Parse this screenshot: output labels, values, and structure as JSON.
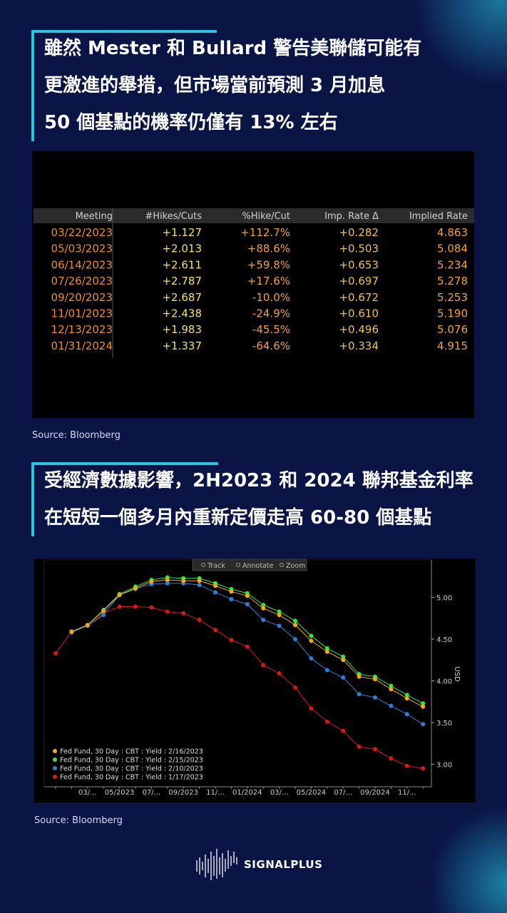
{
  "heading1": {
    "lines": [
      "雖然 Mester 和 Bullard 警告美聯儲可能有",
      "更激進的舉措，但市場當前預測 3 月加息",
      "50 個基點的機率仍僅有 13% 左右"
    ]
  },
  "table": {
    "columns": [
      "Meeting",
      "#Hikes/Cuts",
      "%Hike/Cut",
      "Imp. Rate Δ",
      "Implied Rate"
    ],
    "rows": [
      [
        "03/22/2023",
        "+1.127",
        "+112.7%",
        "+0.282",
        "4.863"
      ],
      [
        "05/03/2023",
        "+2.013",
        "+88.6%",
        "+0.503",
        "5.084"
      ],
      [
        "06/14/2023",
        "+2.611",
        "+59.8%",
        "+0.653",
        "5.234"
      ],
      [
        "07/26/2023",
        "+2.787",
        "+17.6%",
        "+0.697",
        "5.278"
      ],
      [
        "09/20/2023",
        "+2.687",
        "-10.0%",
        "+0.672",
        "5.253"
      ],
      [
        "11/01/2023",
        "+2.438",
        "-24.9%",
        "+0.610",
        "5.190"
      ],
      [
        "12/13/2023",
        "+1.983",
        "-45.5%",
        "+0.496",
        "5.076"
      ],
      [
        "01/31/2024",
        "+1.337",
        "-64.6%",
        "+0.334",
        "4.915"
      ]
    ]
  },
  "source1": "Source: Bloomberg",
  "heading2": {
    "lines": [
      "受經濟數據影響，2H2023 和 2024 聯邦基金利率",
      "在短短一個多月內重新定價走高 60-80 個基點"
    ]
  },
  "chart_data": {
    "type": "line",
    "toolbar": [
      "Track",
      "Annotate",
      "Zoom"
    ],
    "y_label": "USD",
    "categories": [
      null,
      null,
      "03/...",
      null,
      "05/2023",
      null,
      "07/...",
      null,
      "09/2023",
      null,
      "11/...",
      null,
      "01/2024",
      null,
      "03/...",
      null,
      "05/2024",
      null,
      "07/...",
      null,
      "09/2024",
      null,
      "11/...",
      null
    ],
    "series": [
      {
        "name": "Fed Fund, 30 Day : CBT : Yield : 2/16/2023",
        "color": "#f5a623",
        "values": [
          null,
          4.59,
          4.67,
          4.84,
          5.03,
          5.11,
          5.19,
          5.21,
          5.2,
          5.2,
          5.14,
          5.07,
          5.02,
          4.87,
          4.79,
          4.67,
          4.48,
          4.35,
          4.25,
          4.05,
          4.02,
          3.9,
          3.79,
          3.69
        ]
      },
      {
        "name": "Fed Fund, 30 Day : CBT : Yield : 2/15/2023",
        "color": "#3ee23e",
        "values": [
          null,
          4.59,
          4.67,
          4.85,
          5.04,
          5.13,
          5.21,
          5.24,
          5.23,
          5.23,
          5.17,
          5.1,
          5.05,
          4.91,
          4.83,
          4.72,
          4.54,
          4.39,
          4.29,
          4.08,
          4.05,
          3.94,
          3.83,
          3.73
        ]
      },
      {
        "name": "Fed Fund, 30 Day : CBT : Yield : 2/10/2023",
        "color": "#2f7fd8",
        "values": [
          null,
          4.58,
          4.66,
          4.79,
          5.03,
          5.1,
          5.16,
          5.17,
          5.17,
          5.15,
          5.06,
          4.98,
          4.92,
          4.73,
          4.66,
          4.5,
          4.27,
          4.13,
          4.04,
          3.84,
          3.8,
          3.7,
          3.6,
          3.48
        ]
      },
      {
        "name": "Fed Fund, 30 Day : CBT : Yield : 1/17/2023",
        "color": "#d7191c",
        "values": [
          4.33,
          4.59,
          4.66,
          4.81,
          4.89,
          4.89,
          4.88,
          4.83,
          4.81,
          4.73,
          4.61,
          4.49,
          4.41,
          4.19,
          4.09,
          3.92,
          3.67,
          3.51,
          3.4,
          3.21,
          3.18,
          3.07,
          2.98,
          2.95
        ]
      }
    ],
    "ylim": [
      2.73,
      5.45
    ],
    "yticks": [
      {
        "value": 3,
        "label": "3.00"
      },
      {
        "value": 3.5,
        "label": "3.50"
      },
      {
        "value": 4,
        "label": "4.00"
      },
      {
        "value": 4.5,
        "label": "4.50"
      },
      {
        "value": 5,
        "label": "5.00"
      }
    ],
    "legend": "lower left"
  },
  "source2": "Source: Bloomberg",
  "brand": "SIGNALPLUS"
}
